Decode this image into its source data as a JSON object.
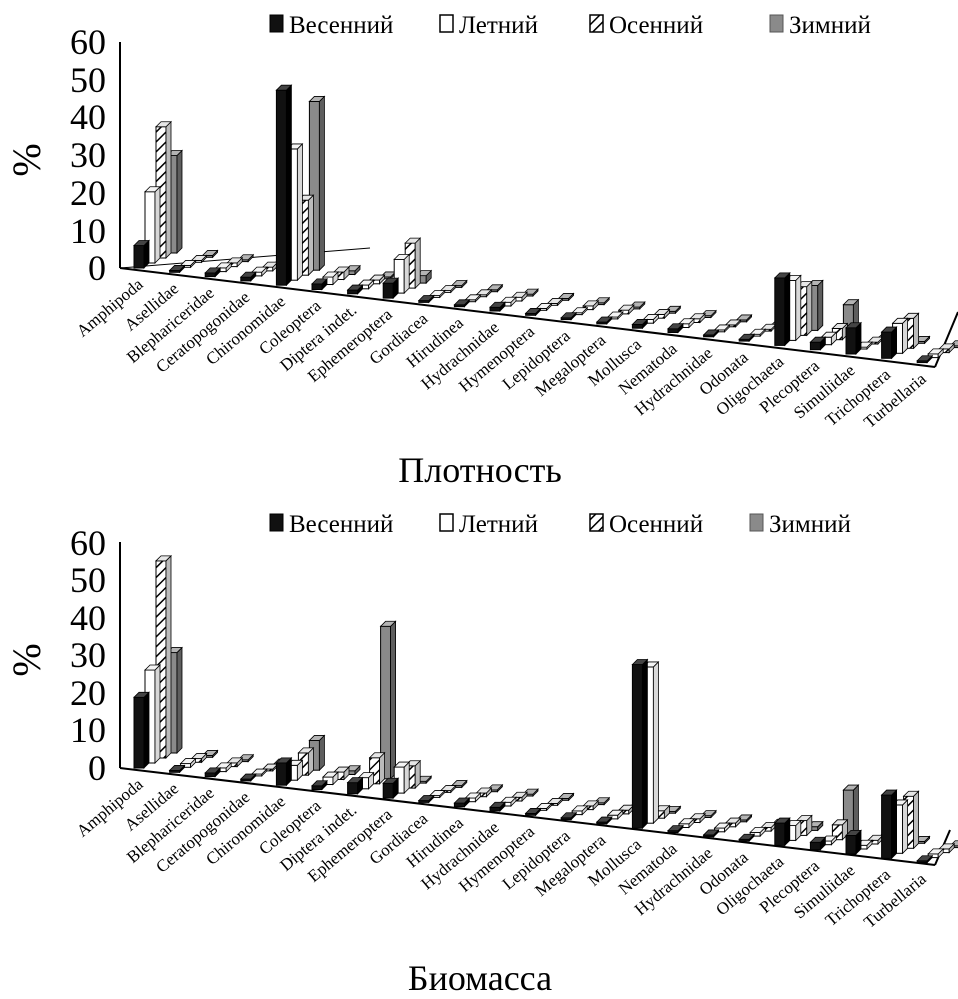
{
  "colors": {
    "spring": "#111111",
    "summer": "#ffffff",
    "autumn": "#ffffff",
    "winter": "#8a8a8a",
    "stroke": "#000000"
  },
  "chart_data": [
    {
      "type": "bar",
      "title": "Плотность",
      "ylabel": "%",
      "ylim": [
        0,
        60
      ],
      "yticks": [
        "0",
        "10",
        "20",
        "30",
        "40",
        "50",
        "60"
      ],
      "legend": [
        "Весенний",
        "Летний",
        "Осенний",
        "Зимний"
      ],
      "categories": [
        "Amphipoda",
        "Asellidae",
        "Blephariceridae",
        "Ceratopogonidae",
        "Chironomidae",
        "Coleoptera",
        "Diptera indet.",
        "Ephemeroptera",
        "Gordiacea",
        "Hirudinea",
        "Hydrachnidae",
        "Hymenoptera",
        "Lepidoptera",
        "Megaloptera",
        "Mollusca",
        "Nematoda",
        "Hydrachnidae",
        "Odonata",
        "Oligochaeta",
        "Plecoptera",
        "Simuliidae",
        "Trichoptera",
        "Turbellaria"
      ],
      "series": [
        {
          "name": "Весенний",
          "values": [
            6,
            0.5,
            1,
            1,
            52,
            1.5,
            1,
            4,
            0.5,
            0.5,
            1,
            0.5,
            0.5,
            0.5,
            1,
            1,
            0.5,
            0.5,
            18,
            2,
            7,
            7,
            0.5
          ]
        },
        {
          "name": "Летний",
          "values": [
            19,
            0.5,
            1,
            1,
            35,
            2,
            1,
            9,
            0.5,
            0.5,
            1,
            0.5,
            0.5,
            0.5,
            1,
            1,
            0.5,
            0.5,
            16,
            2,
            0.5,
            8,
            1
          ]
        },
        {
          "name": "Осенний",
          "values": [
            35,
            0.5,
            1,
            1,
            20,
            2,
            1,
            12,
            0.5,
            0.5,
            1,
            0.5,
            1,
            1,
            1,
            1,
            0.5,
            0.5,
            13,
            3,
            0.5,
            8,
            1
          ]
        },
        {
          "name": "Зимний",
          "values": [
            26,
            0.5,
            0.5,
            0.5,
            45,
            1,
            0.5,
            2,
            0.5,
            0.5,
            0.5,
            0.5,
            0.5,
            0.5,
            0.5,
            0.5,
            0.5,
            0.5,
            12,
            8,
            0.5,
            0.5,
            0.5
          ]
        }
      ]
    },
    {
      "type": "bar",
      "title": "Биомасса",
      "ylabel": "%",
      "ylim": [
        0,
        60
      ],
      "yticks": [
        "0",
        "10",
        "20",
        "30",
        "40",
        "50",
        "60"
      ],
      "legend": [
        "Весенний",
        "Летний",
        "Осенний",
        "Зимний"
      ],
      "categories": [
        "Amphipoda",
        "Asellidae",
        "Blephariceridae",
        "Ceratopogonidae",
        "Chironomidae",
        "Coleoptera",
        "Diptera indet.",
        "Ephemeroptera",
        "Gordiacea",
        "Hirudinea",
        "Hydrachnidae",
        "Hymenoptera",
        "Lepidoptera",
        "Megaloptera",
        "Mollusca",
        "Nematoda",
        "Hydrachnidae",
        "Odonata",
        "Oligochaeta",
        "Plecoptera",
        "Simuliidae",
        "Trichoptera",
        "Turbellaria"
      ],
      "series": [
        {
          "name": "Весенний",
          "values": [
            19,
            0.5,
            1,
            0.5,
            6,
            1,
            3,
            4,
            0.5,
            1,
            1,
            0.5,
            0.5,
            0.5,
            44,
            0.5,
            0.5,
            0.5,
            6,
            2,
            5,
            17,
            0.5
          ]
        },
        {
          "name": "Летний",
          "values": [
            25,
            1,
            1,
            0.5,
            4,
            2,
            3,
            7,
            0.5,
            1,
            1,
            0.5,
            1,
            1,
            42,
            1,
            1,
            1,
            4,
            1,
            1,
            13,
            1
          ]
        },
        {
          "name": "Осенний",
          "values": [
            53,
            1,
            1,
            0.5,
            6,
            2,
            7,
            6,
            0.5,
            1,
            1,
            0.5,
            1,
            1,
            2,
            1,
            1,
            1,
            4,
            4,
            1,
            14,
            1
          ]
        },
        {
          "name": "Зимний",
          "values": [
            27,
            0.5,
            0.5,
            0.5,
            8,
            1,
            41,
            0.5,
            0.5,
            0.5,
            0.5,
            0.5,
            0.5,
            0.5,
            0.5,
            0.5,
            0.5,
            0.5,
            1,
            12,
            0.5,
            0.5,
            0.5
          ]
        }
      ]
    }
  ]
}
